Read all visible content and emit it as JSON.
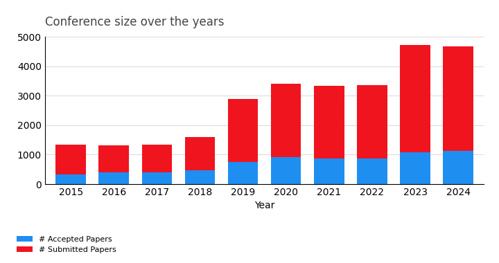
{
  "chart_data": {
    "type": "bar",
    "title": "Conference size over the years",
    "x_label": "Year",
    "categories": [
      "2015",
      "2016",
      "2017",
      "2018",
      "2019",
      "2020",
      "2021",
      "2022",
      "2023",
      "2024"
    ],
    "series": [
      {
        "name": "# Submitted Papers",
        "color": "#f0141e",
        "values": [
          1350,
          1320,
          1350,
          1600,
          2900,
          3400,
          3330,
          3350,
          4720,
          4670
        ]
      },
      {
        "name": "# Accepted Papers",
        "color": "#1f8ef1",
        "values": [
          330,
          400,
          390,
          480,
          760,
          910,
          870,
          870,
          1070,
          1130
        ]
      }
    ],
    "stacked": false,
    "ylim": [
      0,
      5000
    ],
    "yticks": [
      0,
      1000,
      2000,
      3000,
      4000,
      5000
    ],
    "grid": true,
    "legend": "lower left"
  }
}
